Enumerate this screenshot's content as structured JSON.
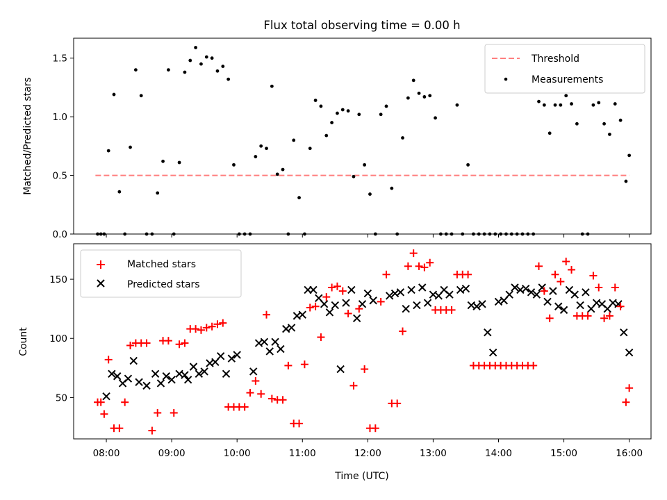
{
  "chart_data": [
    {
      "type": "scatter",
      "title": "Flux total observing time = 0.00 h",
      "xlabel": "",
      "ylabel": "Matched/Predicted stars",
      "xlim": [
        "07:30",
        "16:20"
      ],
      "ylim": [
        0,
        1.67
      ],
      "yticks": [
        "0.0",
        "0.5",
        "1.0",
        "1.5"
      ],
      "legend_position": "top-right",
      "colors": {
        "threshold": "#ff7f7f",
        "measurements": "#000000"
      },
      "threshold": {
        "label": "Threshold",
        "value": 0.5,
        "x_range": [
          "07:50",
          "16:00"
        ]
      },
      "series": [
        {
          "name": "Measurements",
          "x": [
            "07:52",
            "07:55",
            "07:58",
            "08:02",
            "08:07",
            "08:12",
            "08:17",
            "08:22",
            "08:27",
            "08:32",
            "08:37",
            "08:42",
            "08:47",
            "08:52",
            "08:57",
            "09:02",
            "09:07",
            "09:12",
            "09:17",
            "09:22",
            "09:27",
            "09:32",
            "09:37",
            "09:42",
            "09:47",
            "09:52",
            "09:57",
            "10:02",
            "10:07",
            "10:12",
            "10:17",
            "10:22",
            "10:27",
            "10:32",
            "10:37",
            "10:42",
            "10:47",
            "10:52",
            "10:57",
            "11:02",
            "11:07",
            "11:12",
            "11:17",
            "11:22",
            "11:27",
            "11:32",
            "11:37",
            "11:42",
            "11:47",
            "11:52",
            "11:57",
            "12:02",
            "12:07",
            "12:12",
            "12:17",
            "12:22",
            "12:27",
            "12:32",
            "12:37",
            "12:42",
            "12:47",
            "12:52",
            "12:57",
            "13:02",
            "13:07",
            "13:12",
            "13:17",
            "13:22",
            "13:27",
            "13:32",
            "13:37",
            "13:42",
            "13:47",
            "13:52",
            "13:57",
            "14:02",
            "14:07",
            "14:12",
            "14:17",
            "14:22",
            "14:27",
            "14:32",
            "14:37",
            "14:42",
            "14:47",
            "14:52",
            "14:57",
            "15:02",
            "15:07",
            "15:12",
            "15:17",
            "15:22",
            "15:27",
            "15:32",
            "15:37",
            "15:42",
            "15:47",
            "15:52",
            "15:57",
            "16:00"
          ],
          "values": [
            0.0,
            0.0,
            0.0,
            0.71,
            1.19,
            0.36,
            0.0,
            0.74,
            1.4,
            1.18,
            0.0,
            0.0,
            0.35,
            0.62,
            1.4,
            0.0,
            0.61,
            1.38,
            1.48,
            1.59,
            1.45,
            1.51,
            1.5,
            1.39,
            1.43,
            1.32,
            0.59,
            0.0,
            0.0,
            0.0,
            0.66,
            0.75,
            0.73,
            1.26,
            0.51,
            0.55,
            0.0,
            0.8,
            0.31,
            0.0,
            0.73,
            1.14,
            1.09,
            0.84,
            0.95,
            1.03,
            1.06,
            1.05,
            0.49,
            1.02,
            0.59,
            0.34,
            0.0,
            1.02,
            1.09,
            0.39,
            0.0,
            0.82,
            1.16,
            1.31,
            1.2,
            1.17,
            1.18,
            0.99,
            0.0,
            0.0,
            0.0,
            1.1,
            0.0,
            0.59,
            0.0,
            0.0,
            0.0,
            0.0,
            0.0,
            0.0,
            0.0,
            0.0,
            0.0,
            0.0,
            0.0,
            0.0,
            1.13,
            1.1,
            0.86,
            1.1,
            1.1,
            1.18,
            1.11,
            0.94,
            0.0,
            0.0,
            1.1,
            1.12,
            0.94,
            0.85,
            1.11,
            0.97,
            0.45,
            0.67
          ]
        }
      ]
    },
    {
      "type": "scatter",
      "title": "",
      "xlabel": "Time (UTC)",
      "ylabel": "Count",
      "xlim": [
        "07:30",
        "16:20"
      ],
      "ylim": [
        15,
        180
      ],
      "yticks": [
        "50",
        "100",
        "150"
      ],
      "xticks": [
        "08:00",
        "09:00",
        "10:00",
        "11:00",
        "12:00",
        "13:00",
        "14:00",
        "15:00",
        "16:00"
      ],
      "legend_position": "top-left",
      "colors": {
        "matched": "#ff0000",
        "predicted": "#000000"
      },
      "series": [
        {
          "name": "Matched stars",
          "marker": "+",
          "x": [
            "07:52",
            "07:55",
            "07:58",
            "08:02",
            "08:07",
            "08:12",
            "08:17",
            "08:22",
            "08:27",
            "08:32",
            "08:37",
            "08:42",
            "08:47",
            "08:52",
            "08:57",
            "09:02",
            "09:07",
            "09:12",
            "09:17",
            "09:22",
            "09:27",
            "09:32",
            "09:37",
            "09:42",
            "09:47",
            "09:52",
            "09:57",
            "10:02",
            "10:07",
            "10:12",
            "10:17",
            "10:22",
            "10:27",
            "10:32",
            "10:37",
            "10:42",
            "10:47",
            "10:52",
            "10:57",
            "11:02",
            "11:07",
            "11:12",
            "11:17",
            "11:22",
            "11:27",
            "11:32",
            "11:37",
            "11:42",
            "11:47",
            "11:52",
            "11:57",
            "12:02",
            "12:07",
            "12:12",
            "12:17",
            "12:22",
            "12:27",
            "12:32",
            "12:37",
            "12:42",
            "12:47",
            "12:52",
            "12:57",
            "13:02",
            "13:07",
            "13:12",
            "13:17",
            "13:22",
            "13:27",
            "13:32",
            "13:37",
            "13:42",
            "13:47",
            "13:52",
            "13:57",
            "14:02",
            "14:07",
            "14:12",
            "14:17",
            "14:22",
            "14:27",
            "14:32",
            "14:37",
            "14:42",
            "14:47",
            "14:52",
            "14:57",
            "15:02",
            "15:07",
            "15:12",
            "15:17",
            "15:22",
            "15:27",
            "15:32",
            "15:37",
            "15:42",
            "15:47",
            "15:52",
            "15:57",
            "16:00"
          ],
          "values": [
            46,
            46,
            36,
            82,
            24,
            24,
            46,
            94,
            96,
            96,
            96,
            22,
            37,
            98,
            98,
            37,
            95,
            96,
            108,
            108,
            107,
            109,
            110,
            112,
            113,
            42,
            42,
            42,
            42,
            54,
            64,
            53,
            120,
            49,
            48,
            48,
            77,
            28,
            28,
            78,
            126,
            127,
            101,
            135,
            143,
            144,
            140,
            121,
            60,
            125,
            74,
            24,
            24,
            131,
            154,
            45,
            45,
            106,
            161,
            172,
            161,
            160,
            164,
            124,
            124,
            124,
            124,
            154,
            154,
            154,
            77,
            77,
            77,
            77,
            77,
            77,
            77,
            77,
            77,
            77,
            77,
            77,
            161,
            140,
            117,
            154,
            148,
            165,
            158,
            119,
            119,
            119,
            153,
            143,
            117,
            119,
            143,
            127,
            46,
            58
          ]
        },
        {
          "name": "Predicted stars",
          "marker": "x",
          "x": [
            "08:00",
            "08:05",
            "08:10",
            "08:15",
            "08:20",
            "08:25",
            "08:30",
            "08:37",
            "08:45",
            "08:50",
            "08:55",
            "09:00",
            "09:07",
            "09:12",
            "09:15",
            "09:20",
            "09:25",
            "09:30",
            "09:35",
            "09:40",
            "09:45",
            "09:50",
            "09:55",
            "10:00",
            "10:15",
            "10:20",
            "10:25",
            "10:30",
            "10:35",
            "10:40",
            "10:45",
            "10:50",
            "10:55",
            "11:00",
            "11:05",
            "11:10",
            "11:15",
            "11:20",
            "11:25",
            "11:30",
            "11:35",
            "11:40",
            "11:45",
            "11:50",
            "11:55",
            "12:00",
            "12:05",
            "12:20",
            "12:25",
            "12:30",
            "12:35",
            "12:40",
            "12:45",
            "12:50",
            "12:55",
            "13:00",
            "13:05",
            "13:10",
            "13:15",
            "13:25",
            "13:30",
            "13:35",
            "13:40",
            "13:45",
            "13:50",
            "13:55",
            "14:00",
            "14:05",
            "14:10",
            "14:15",
            "14:20",
            "14:25",
            "14:30",
            "14:35",
            "14:40",
            "14:45",
            "14:50",
            "14:55",
            "15:00",
            "15:05",
            "15:10",
            "15:15",
            "15:20",
            "15:25",
            "15:30",
            "15:35",
            "15:40",
            "15:45",
            "15:50",
            "15:55",
            "16:00"
          ],
          "values": [
            51,
            70,
            68,
            62,
            66,
            81,
            63,
            60,
            70,
            62,
            68,
            65,
            70,
            69,
            65,
            76,
            70,
            72,
            79,
            80,
            85,
            70,
            83,
            86,
            72,
            96,
            97,
            89,
            97,
            91,
            108,
            109,
            119,
            120,
            141,
            141,
            134,
            129,
            122,
            128,
            74,
            130,
            141,
            117,
            129,
            138,
            132,
            136,
            138,
            139,
            125,
            141,
            128,
            143,
            130,
            137,
            136,
            141,
            137,
            141,
            142,
            128,
            127,
            129,
            105,
            88,
            131,
            132,
            137,
            143,
            141,
            142,
            139,
            137,
            143,
            131,
            140,
            127,
            124,
            141,
            137,
            128,
            139,
            125,
            130,
            129,
            125,
            130,
            129,
            105,
            88
          ]
        }
      ]
    }
  ]
}
